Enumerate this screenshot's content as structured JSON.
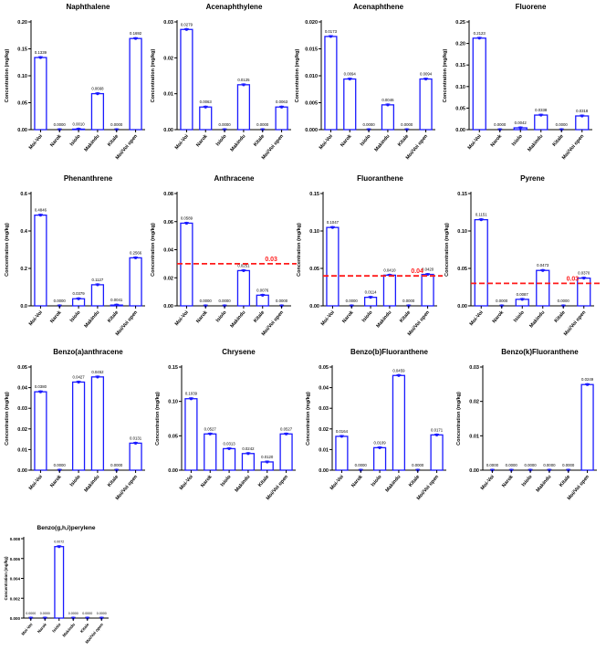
{
  "colors": {
    "bar": "#1a1aff",
    "point": "#1a1aff",
    "axis": "#000000",
    "reference": "#ff1a1a"
  },
  "chart_data": [
    {
      "id": "naphthalene",
      "type": "bar",
      "title": "Naphthalene",
      "xlabel": "",
      "ylabel": "Concentration (mg/kg)",
      "categories": [
        "Moi-Voi",
        "Narok",
        "Isiolo",
        "Makindu",
        "Kitale",
        "Moi/Voi open"
      ],
      "values": [
        0.1339,
        0.0,
        0.001,
        0.0668,
        0.0,
        0.1692
      ],
      "value_labels": [
        "0.1339",
        "0.0000",
        "0.0010",
        "0.0668",
        "0.0000",
        "0.1692"
      ],
      "ylim": [
        0,
        0.2
      ],
      "yticks": [
        0,
        0.05,
        0.1,
        0.15,
        0.2
      ],
      "ytick_labels": [
        "0.00",
        "0.05",
        "0.10",
        "0.15",
        "0.20"
      ],
      "reference_line": null,
      "grid": false,
      "legend": "none"
    },
    {
      "id": "acenaphthylene",
      "type": "bar",
      "title": "Acenaphthylene",
      "xlabel": "",
      "ylabel": "Concentration (mg/kg)",
      "categories": [
        "Moi-Voi",
        "Narok",
        "Isiolo",
        "Makindu",
        "Kitale",
        "Moi/Voi open"
      ],
      "values": [
        0.0279,
        0.0063,
        0.0,
        0.0125,
        0.0,
        0.0063
      ],
      "value_labels": [
        "0.0279",
        "0.0063",
        "0.0000",
        "0.0125",
        "0.0000",
        "0.0063"
      ],
      "ylim": [
        0,
        0.03
      ],
      "yticks": [
        0,
        0.01,
        0.02,
        0.03
      ],
      "ytick_labels": [
        "0.00",
        "0.01",
        "0.02",
        "0.03"
      ],
      "reference_line": null,
      "grid": false,
      "legend": "none"
    },
    {
      "id": "acenaphthene",
      "type": "bar",
      "title": "Acenaphthene",
      "xlabel": "",
      "ylabel": "Concentration (mg/kg)",
      "categories": [
        "Moi-Voi",
        "Narok",
        "Isiolo",
        "Makindu",
        "Kitale",
        "Moi/Voi open"
      ],
      "values": [
        0.0173,
        0.0094,
        0.0,
        0.0046,
        0.0,
        0.0094
      ],
      "value_labels": [
        "0.0173",
        "0.0094",
        "0.0000",
        "0.0046",
        "0.0000",
        "0.0094"
      ],
      "ylim": [
        0,
        0.02
      ],
      "yticks": [
        0,
        0.005,
        0.01,
        0.015,
        0.02
      ],
      "ytick_labels": [
        "0.000",
        "0.005",
        "0.010",
        "0.015",
        "0.020"
      ],
      "reference_line": null,
      "grid": false,
      "legend": "none"
    },
    {
      "id": "fluorene",
      "type": "bar",
      "title": "Fluorene",
      "xlabel": "",
      "ylabel": "Concentration (mg/kg)",
      "categories": [
        "Moi-Voi",
        "Narok",
        "Isiolo",
        "Makindu",
        "Kitale",
        "Moi/Voi open"
      ],
      "values": [
        0.2123,
        0.0,
        0.0042,
        0.0338,
        0.0,
        0.0318
      ],
      "value_labels": [
        "0.2123",
        "0.0000",
        "0.0042",
        "0.0338",
        "0.0000",
        "0.0318"
      ],
      "ylim": [
        0,
        0.25
      ],
      "yticks": [
        0,
        0.05,
        0.1,
        0.15,
        0.2,
        0.25
      ],
      "ytick_labels": [
        "0.00",
        "0.05",
        "0.10",
        "0.15",
        "0.20",
        "0.25"
      ],
      "reference_line": null,
      "grid": false,
      "legend": "none"
    },
    {
      "id": "phenanthrene",
      "type": "bar",
      "title": "Phenanthrene",
      "xlabel": "",
      "ylabel": "Concentration (mg/kg)",
      "categories": [
        "Moi-Voi",
        "Narok",
        "Isiolo",
        "Makindu",
        "Kitale",
        "Moi/Voi open"
      ],
      "values": [
        0.4846,
        0.0,
        0.0379,
        0.1127,
        0.0041,
        0.2566
      ],
      "value_labels": [
        "0.4846",
        "0.0000",
        "0.0379",
        "0.1127",
        "0.0041",
        "0.2566"
      ],
      "ylim": [
        0,
        0.6
      ],
      "yticks": [
        0,
        0.2,
        0.4,
        0.6
      ],
      "ytick_labels": [
        "0.0",
        "0.2",
        "0.4",
        "0.6"
      ],
      "reference_line": null,
      "grid": false,
      "legend": "none"
    },
    {
      "id": "anthracene",
      "type": "bar",
      "title": "Anthracene",
      "xlabel": "",
      "ylabel": "Concentration (mg/kg)",
      "categories": [
        "Moi-Voi",
        "Narok",
        "Isiolo",
        "Makindu",
        "Kitale",
        "Moi/Voi open"
      ],
      "values": [
        0.0589,
        0.0,
        0.0,
        0.0251,
        0.0076,
        0.0
      ],
      "value_labels": [
        "0.0589",
        "0.0000",
        "0.0000",
        "0.0251",
        "0.0076",
        "0.0000"
      ],
      "ylim": [
        0,
        0.08
      ],
      "yticks": [
        0,
        0.02,
        0.04,
        0.06,
        0.08
      ],
      "ytick_labels": [
        "0.00",
        "0.02",
        "0.04",
        "0.06",
        "0.08"
      ],
      "reference_line": {
        "value": 0.03,
        "label": "0.03"
      },
      "grid": false,
      "legend": "none"
    },
    {
      "id": "fluoranthene",
      "type": "bar",
      "title": "Fluoranthene",
      "xlabel": "",
      "ylabel": "Concentration (mg/kg)",
      "categories": [
        "Moi-Voi",
        "Narok",
        "Isiolo",
        "Makindu",
        "Kitale",
        "Moi/Voi open"
      ],
      "values": [
        0.1047,
        0.0,
        0.0114,
        0.041,
        0.0,
        0.042
      ],
      "value_labels": [
        "0.1047",
        "0.0000",
        "0.0114",
        "0.0410",
        "0.0000",
        "0.0420"
      ],
      "ylim": [
        0,
        0.15
      ],
      "yticks": [
        0,
        0.05,
        0.1,
        0.15
      ],
      "ytick_labels": [
        "0.00",
        "0.05",
        "0.10",
        "0.15"
      ],
      "reference_line": {
        "value": 0.04,
        "label": "0.04"
      },
      "grid": false,
      "legend": "none"
    },
    {
      "id": "pyrene",
      "type": "bar",
      "title": "Pyrene",
      "xlabel": "",
      "ylabel": "Concentration (mg/kg)",
      "categories": [
        "Moi-Voi",
        "Narok",
        "Isiolo",
        "Makindu",
        "Kitale",
        "Moi/Voi open"
      ],
      "values": [
        0.1151,
        0.0,
        0.0087,
        0.0473,
        0.0,
        0.037
      ],
      "value_labels": [
        "0.1151",
        "0.0000",
        "0.0087",
        "0.0473",
        "0.0000",
        "0.0370"
      ],
      "ylim": [
        0,
        0.15
      ],
      "yticks": [
        0,
        0.05,
        0.1,
        0.15
      ],
      "ytick_labels": [
        "0.00",
        "0.05",
        "0.10",
        "0.15"
      ],
      "reference_line": {
        "value": 0.03,
        "label": "0.03"
      },
      "grid": false,
      "legend": "none"
    },
    {
      "id": "benzo-a-anthracene",
      "type": "bar",
      "title": "Benzo(a)anthracene",
      "xlabel": "",
      "ylabel": "Concentration (mg/kg)",
      "categories": [
        "Moi-Voi",
        "Narok",
        "Isiolo",
        "Makindu",
        "Kitale",
        "Moi/Voi open"
      ],
      "values": [
        0.038,
        0.0,
        0.0427,
        0.0452,
        0.0,
        0.0131
      ],
      "value_labels": [
        "0.0380",
        "0.0000",
        "0.0427",
        "0.0452",
        "0.0000",
        "0.0131"
      ],
      "ylim": [
        0,
        0.05
      ],
      "yticks": [
        0,
        0.01,
        0.02,
        0.03,
        0.04,
        0.05
      ],
      "ytick_labels": [
        "0.00",
        "0.01",
        "0.02",
        "0.03",
        "0.04",
        "0.05"
      ],
      "reference_line": null,
      "grid": false,
      "legend": "none"
    },
    {
      "id": "chrysene",
      "type": "bar",
      "title": "Chrysene",
      "xlabel": "",
      "ylabel": "Concentration (mg/kg)",
      "categories": [
        "Moi-Voi",
        "Narok",
        "Isiolo",
        "Makindu",
        "Kitale",
        "Moi/Voi open"
      ],
      "values": [
        0.1039,
        0.0527,
        0.0313,
        0.0242,
        0.012,
        0.0527
      ],
      "value_labels": [
        "0.1039",
        "0.0527",
        "0.0313",
        "0.0242",
        "0.0120",
        "0.0527"
      ],
      "ylim": [
        0,
        0.15
      ],
      "yticks": [
        0,
        0.05,
        0.1,
        0.15
      ],
      "ytick_labels": [
        "0.00",
        "0.05",
        "0.10",
        "0.15"
      ],
      "reference_line": null,
      "grid": false,
      "legend": "none"
    },
    {
      "id": "benzo-b-fluoranthene",
      "type": "bar",
      "title": "Benzo(b)Fluoranthene",
      "xlabel": "",
      "ylabel": "Concentration (mg/kg)",
      "categories": [
        "Moi-Voi",
        "Narok",
        "Isiolo",
        "Makindu",
        "Kitale",
        "Moi/Voi open"
      ],
      "values": [
        0.0164,
        0.0,
        0.0109,
        0.0459,
        0.0,
        0.0171
      ],
      "value_labels": [
        "0.0164",
        "0.0000",
        "0.0109",
        "0.0459",
        "0.0000",
        "0.0171"
      ],
      "ylim": [
        0,
        0.05
      ],
      "yticks": [
        0,
        0.01,
        0.02,
        0.03,
        0.04,
        0.05
      ],
      "ytick_labels": [
        "0.00",
        "0.01",
        "0.02",
        "0.03",
        "0.04",
        "0.05"
      ],
      "reference_line": null,
      "grid": false,
      "legend": "none"
    },
    {
      "id": "benzo-k-fluoranthene",
      "type": "bar",
      "title": "Benzo(k)Fluoranthene",
      "xlabel": "",
      "ylabel": "Concentration (mg/kg)",
      "categories": [
        "Moi-Voi",
        "Narok",
        "Isiolo",
        "Makindu",
        "Kitale",
        "Moi/Voi open"
      ],
      "values": [
        0.0,
        0.0,
        0.0,
        0.0,
        0.0,
        0.0249
      ],
      "value_labels": [
        "0.0000",
        "0.0000",
        "0.0000",
        "0.0000",
        "0.0000",
        "0.0249"
      ],
      "ylim": [
        0,
        0.03
      ],
      "yticks": [
        0,
        0.01,
        0.02,
        0.03
      ],
      "ytick_labels": [
        "0.00",
        "0.01",
        "0.02",
        "0.03"
      ],
      "reference_line": null,
      "grid": false,
      "legend": "none"
    },
    {
      "id": "benzo-ghi-perylene",
      "type": "bar",
      "title": "Benzo(g,h,i)perylene",
      "xlabel": "",
      "ylabel": "Concentration (mg/kg)",
      "categories": [
        "Moi-Voi",
        "Narok",
        "Isiolo",
        "Makindu",
        "Kitale",
        "Moi/Voi open"
      ],
      "values": [
        0.0,
        0.0,
        0.0072,
        0.0,
        0.0,
        0.0
      ],
      "value_labels": [
        "0.0000",
        "0.0000",
        "0.0072",
        "0.0000",
        "0.0000",
        "0.0000"
      ],
      "ylim": [
        0,
        0.008
      ],
      "yticks": [
        0,
        0.002,
        0.004,
        0.006,
        0.008
      ],
      "ytick_labels": [
        "0.000",
        "0.002",
        "0.004",
        "0.006",
        "0.008"
      ],
      "reference_line": null,
      "grid": false,
      "legend": "none"
    }
  ]
}
